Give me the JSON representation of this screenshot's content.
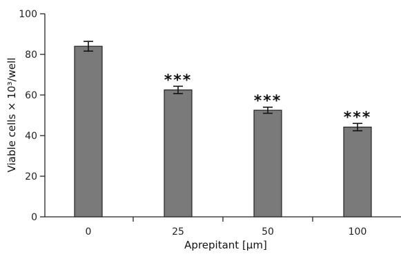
{
  "chart_data": {
    "type": "bar",
    "categories": [
      "0",
      "25",
      "50",
      "100"
    ],
    "values": [
      84,
      62.5,
      52.5,
      44.2
    ],
    "errors": [
      2.4,
      1.8,
      1.5,
      1.8
    ],
    "significance": [
      "",
      "***",
      "***",
      "***"
    ],
    "xlabel": "Aprepitant [µm]",
    "ylabel": "Viable cells × 10³/well",
    "ylim": [
      0,
      100
    ],
    "yticks": [
      0,
      20,
      40,
      60,
      80,
      100
    ],
    "bar_color": "#7a7a7a",
    "grid": false,
    "legend": "none"
  }
}
